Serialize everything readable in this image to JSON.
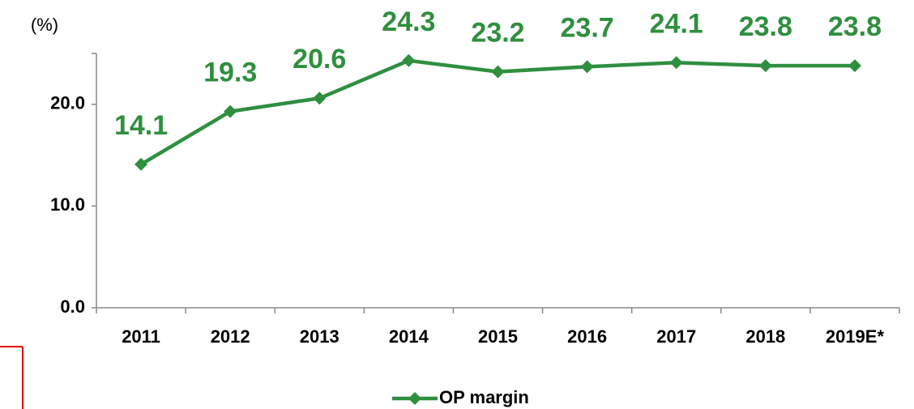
{
  "chart_data": {
    "type": "line",
    "y_axis_label": "(%)",
    "categories": [
      "2011",
      "2012",
      "2013",
      "2014",
      "2015",
      "2016",
      "2017",
      "2018",
      "2019E*"
    ],
    "series": [
      {
        "name": "OP margin",
        "color": "#2f8f3f",
        "values": [
          14.1,
          19.3,
          20.6,
          24.3,
          23.2,
          23.7,
          24.1,
          23.8,
          23.8
        ]
      }
    ],
    "ylim": [
      0,
      25
    ],
    "yticks": [
      {
        "value": 0,
        "label": "0.0"
      },
      {
        "value": 10,
        "label": "10.0"
      },
      {
        "value": 20,
        "label": "20.0"
      }
    ],
    "legend": "bottom"
  }
}
